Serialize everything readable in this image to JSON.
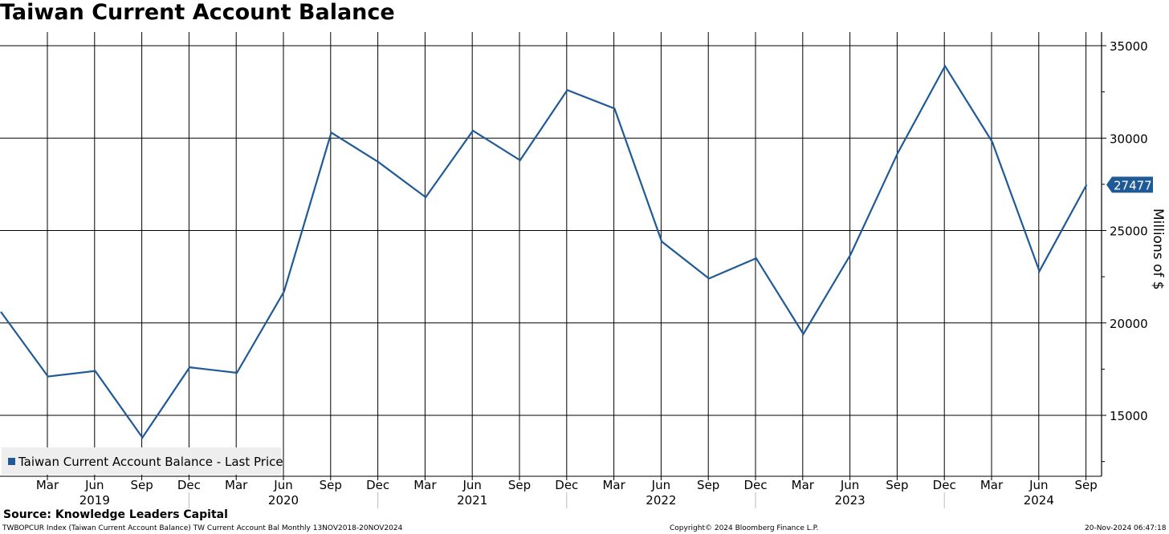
{
  "title": "Taiwan Current Account Balance",
  "source": "Source: Knowledge Leaders Capital",
  "footer": {
    "index_info": "TWBOPCUR Index (Taiwan Current Account Balance) TW Current Account Bal  Monthly 13NOV2018-20NOV2024",
    "copyright": "Copyright© 2024 Bloomberg Finance L.P.",
    "timestamp": "20-Nov-2024 06:47:18"
  },
  "colors": {
    "line": "#1f5a96",
    "grid": "#000000",
    "badge": "#1f5a96",
    "legend_bg": "#eeeeee"
  },
  "chart_data": {
    "type": "line",
    "title": "Taiwan Current Account Balance",
    "ylabel": "Millions of $",
    "ylim": [
      12500,
      35500
    ],
    "y_ticks": [
      15000,
      20000,
      25000,
      30000,
      35000
    ],
    "grid": true,
    "legend_placement": "bottom-left",
    "last_value_label": "27477",
    "x_tick_labels": [
      "Mar",
      "Jun",
      "Sep",
      "Dec",
      "Mar",
      "Jun",
      "Sep",
      "Dec",
      "Mar",
      "Jun",
      "Sep",
      "Dec",
      "Mar",
      "Jun",
      "Sep",
      "Dec",
      "Mar",
      "Jun",
      "Sep",
      "Dec",
      "Mar",
      "Jun",
      "Sep"
    ],
    "year_labels": [
      {
        "label": "2019",
        "between": [
          0,
          2
        ]
      },
      {
        "label": "2020",
        "between": [
          4,
          6
        ]
      },
      {
        "label": "2021",
        "between": [
          8,
          10
        ]
      },
      {
        "label": "2022",
        "between": [
          12,
          14
        ]
      },
      {
        "label": "2023",
        "between": [
          16,
          18
        ]
      },
      {
        "label": "2024",
        "between": [
          20,
          22
        ]
      }
    ],
    "series": [
      {
        "name": "Taiwan Current Account Balance - Last Price",
        "x": [
          "2018-12",
          "2019-03",
          "2019-06",
          "2019-09",
          "2019-12",
          "2020-03",
          "2020-06",
          "2020-09",
          "2020-12",
          "2021-03",
          "2021-06",
          "2021-09",
          "2021-12",
          "2022-03",
          "2022-06",
          "2022-09",
          "2022-12",
          "2023-03",
          "2023-06",
          "2023-09",
          "2023-12",
          "2024-03",
          "2024-06",
          "2024-09"
        ],
        "values": [
          20600,
          17100,
          17400,
          13800,
          17600,
          17300,
          21700,
          30300,
          28700,
          26800,
          30400,
          28800,
          32600,
          31600,
          24400,
          22400,
          23500,
          19400,
          23700,
          29200,
          33900,
          29800,
          22800,
          27477
        ]
      }
    ]
  }
}
